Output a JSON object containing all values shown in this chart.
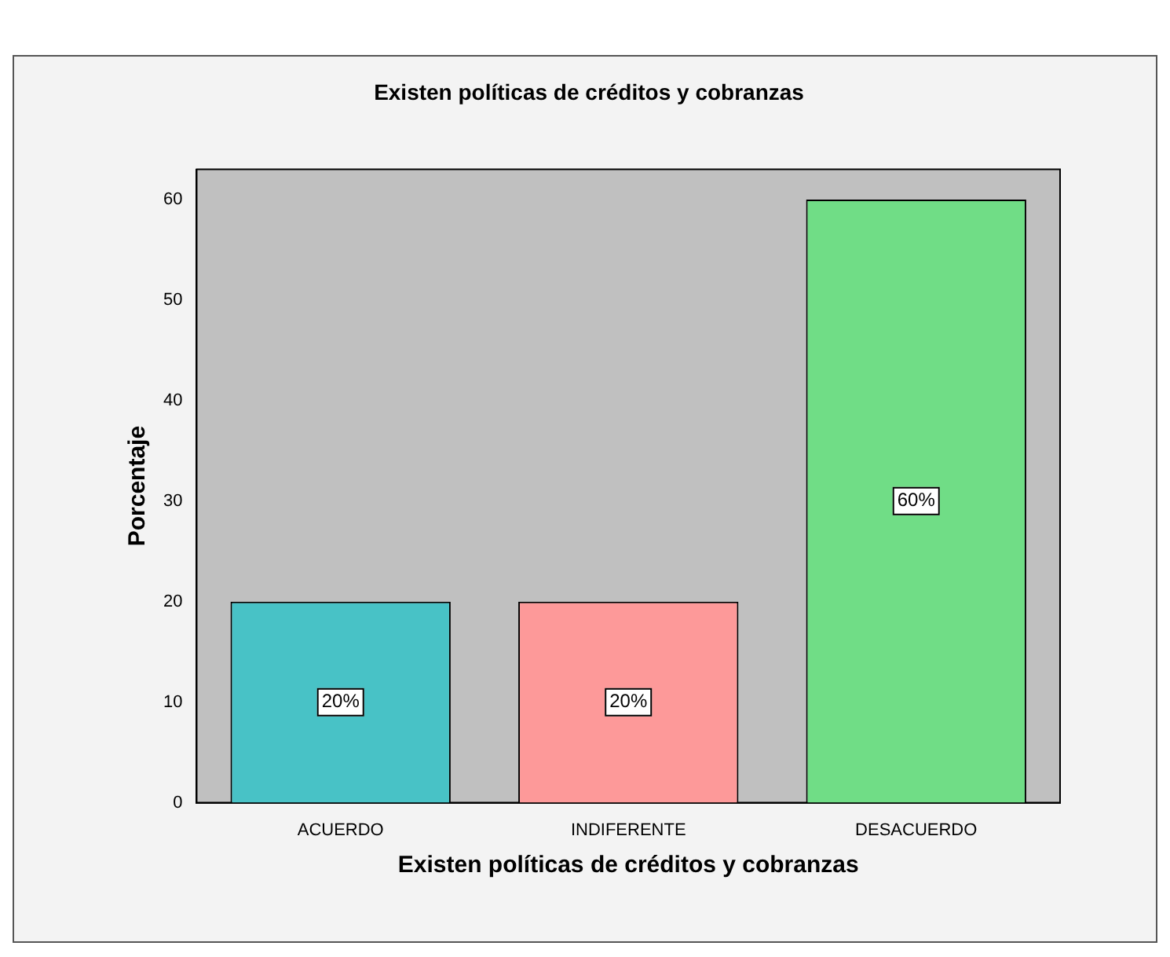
{
  "chart_data": {
    "type": "bar",
    "title": "Existen políticas de créditos y cobranzas",
    "xlabel": "Existen políticas de créditos y cobranzas",
    "ylabel": "Porcentaje",
    "categories": [
      "ACUERDO",
      "INDIFERENTE",
      "DESACUERDO"
    ],
    "values": [
      20,
      20,
      60
    ],
    "colors": [
      "#48c2c6",
      "#fd9999",
      "#70dd86"
    ],
    "value_labels": [
      "20%",
      "20%",
      "60%"
    ],
    "ylim": [
      0,
      63
    ],
    "yticks": [
      0,
      10,
      20,
      30,
      40,
      50,
      60
    ],
    "grid": false,
    "legend": false
  }
}
